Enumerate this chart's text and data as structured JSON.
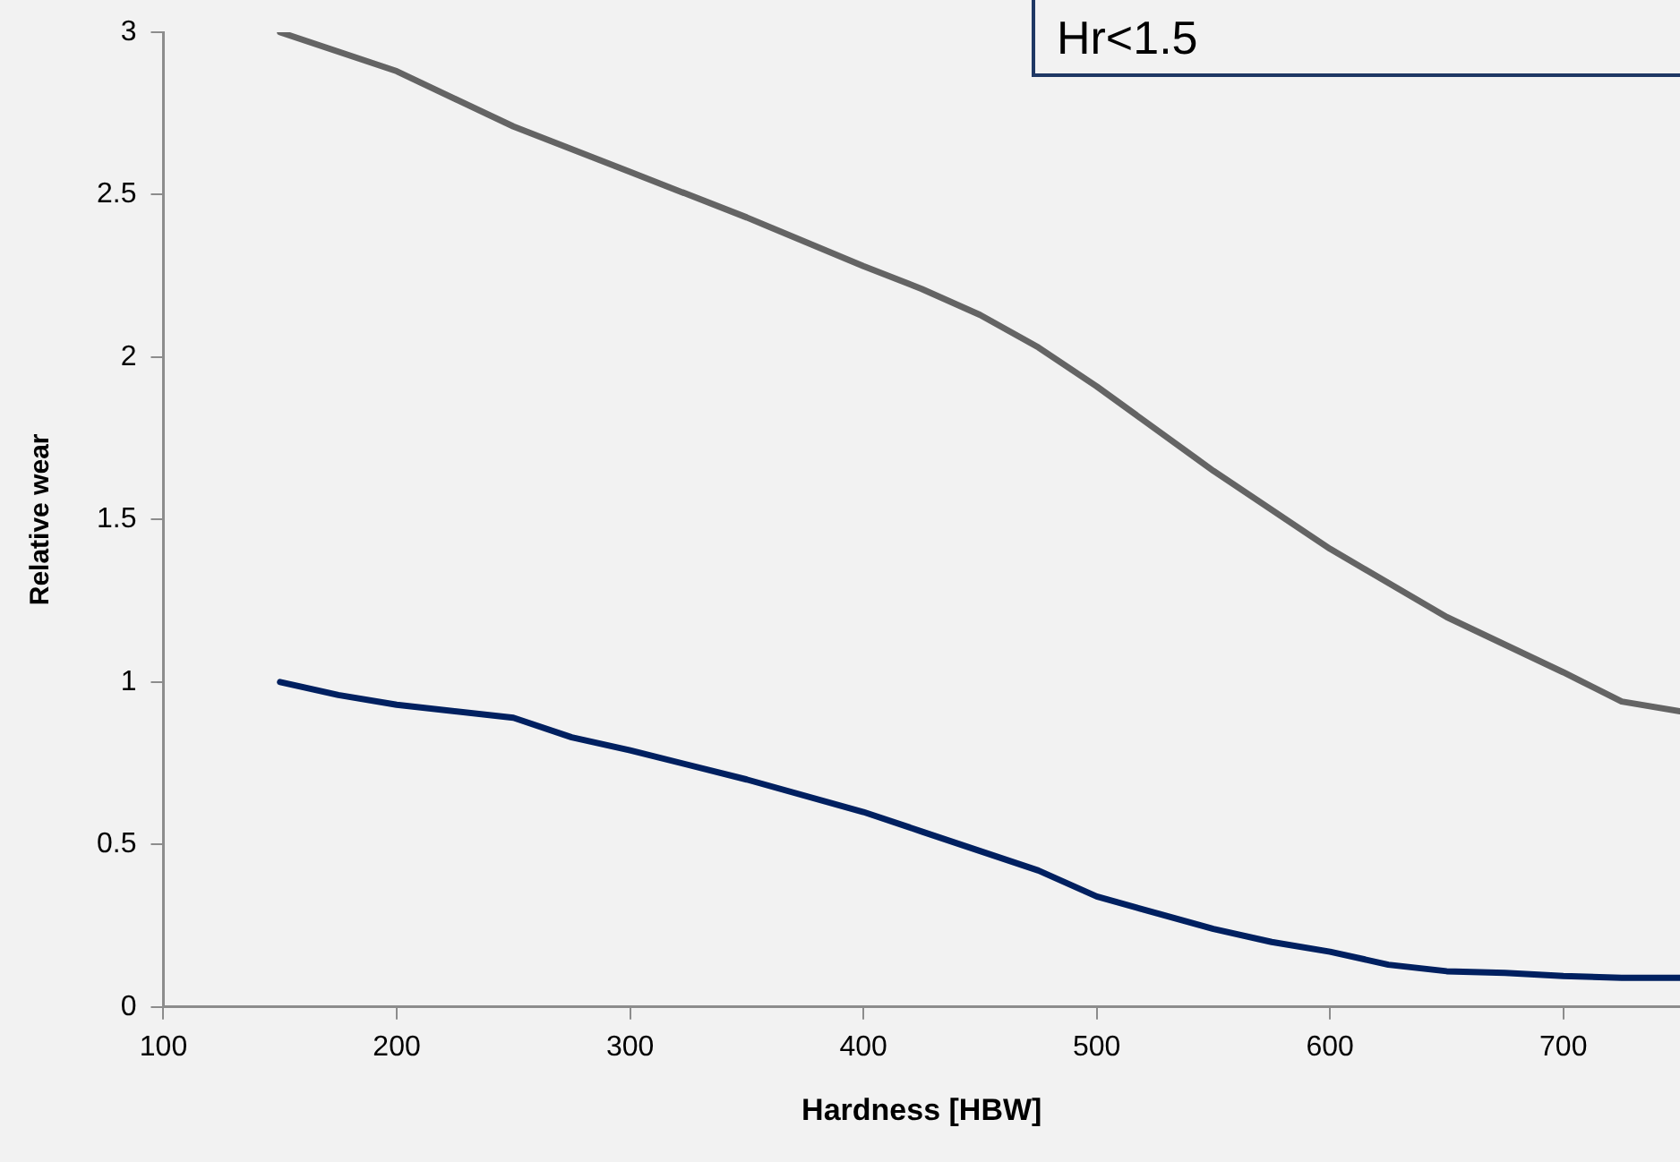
{
  "chart_data": {
    "type": "line",
    "xlabel": "Hardness [HBW]",
    "ylabel": "Relative wear",
    "annotations": [
      "Hr<1.5"
    ],
    "xlim": [
      100,
      750
    ],
    "xticks": [
      100,
      200,
      300,
      400,
      500,
      600,
      700
    ],
    "ylim": [
      0,
      3
    ],
    "yticks": [
      0,
      0.5,
      1,
      1.5,
      2,
      2.5,
      3
    ],
    "grid": false,
    "legend": false,
    "marker": "none",
    "line_style": "solid",
    "series": [
      {
        "color": "#646464",
        "x": [
          150,
          200,
          250,
          300,
          350,
          400,
          425,
          450,
          475,
          500,
          550,
          600,
          650,
          700,
          725,
          750
        ],
        "values": [
          3.0,
          2.88,
          2.71,
          2.57,
          2.43,
          2.28,
          2.21,
          2.13,
          2.03,
          1.91,
          1.65,
          1.41,
          1.2,
          1.03,
          0.94,
          0.91
        ]
      },
      {
        "color": "#002060",
        "x": [
          150,
          175,
          200,
          250,
          275,
          300,
          350,
          400,
          425,
          450,
          475,
          500,
          550,
          575,
          600,
          625,
          650,
          675,
          700,
          725,
          750
        ],
        "values": [
          1.0,
          0.96,
          0.93,
          0.89,
          0.83,
          0.79,
          0.7,
          0.6,
          0.54,
          0.48,
          0.42,
          0.34,
          0.24,
          0.2,
          0.17,
          0.13,
          0.11,
          0.105,
          0.095,
          0.09,
          0.09
        ]
      }
    ]
  }
}
